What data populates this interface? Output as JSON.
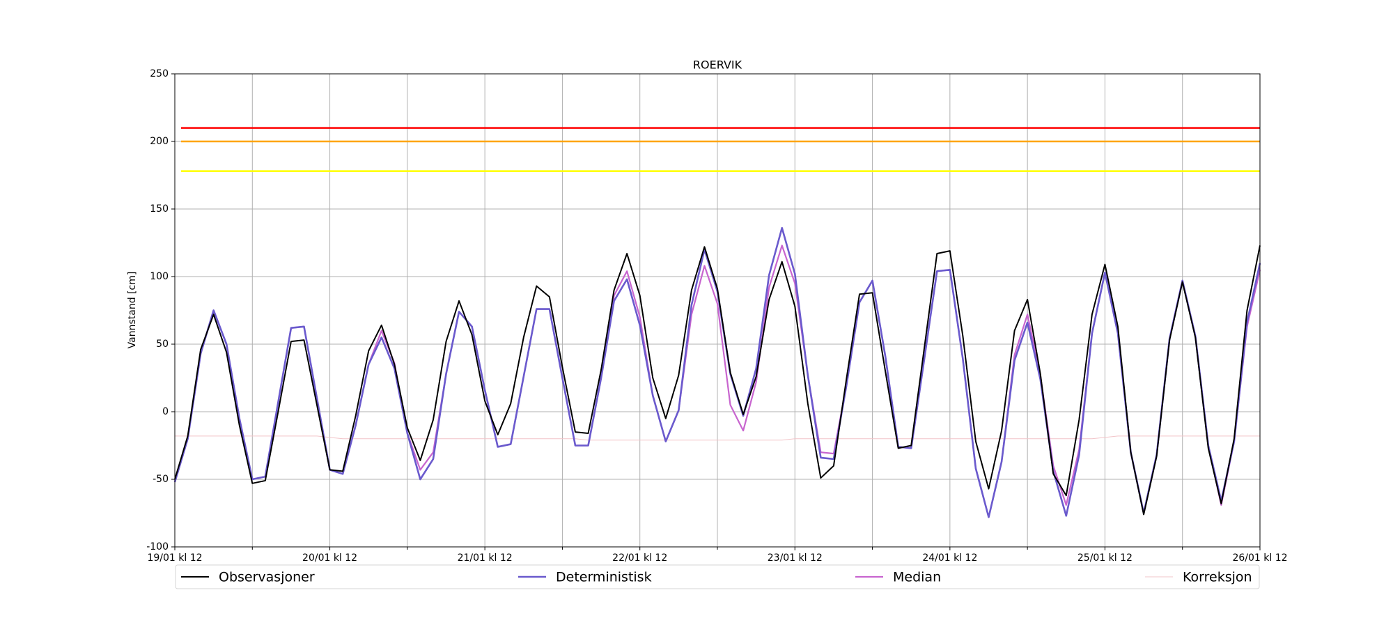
{
  "chart_data": {
    "type": "line",
    "title": "ROERVIK",
    "y_label": "Vannstand [cm]",
    "x": [
      0,
      2,
      4,
      6,
      8,
      10,
      12,
      14,
      16,
      18,
      20,
      22,
      24,
      26,
      28,
      30,
      32,
      34,
      36,
      38,
      40,
      42,
      44,
      46,
      48,
      50,
      52,
      54,
      56,
      58,
      60,
      62,
      64,
      66,
      68,
      70,
      72,
      74,
      76,
      78,
      80,
      82,
      84,
      86,
      88,
      90,
      92,
      94,
      96,
      98,
      100,
      102,
      104,
      106,
      108,
      110,
      112,
      114,
      116,
      118,
      120,
      122,
      124,
      126,
      128,
      130,
      132,
      134,
      136,
      138,
      140,
      142,
      144,
      146,
      148,
      150,
      152,
      154,
      156,
      158,
      160,
      162,
      164,
      166,
      168
    ],
    "xlim": [
      0,
      168
    ],
    "xticks": [
      {
        "value": 0,
        "label": "19/01 kl 12"
      },
      {
        "value": 24,
        "label": "20/01 kl 12"
      },
      {
        "value": 48,
        "label": "21/01 kl 12"
      },
      {
        "value": 72,
        "label": "22/01 kl 12"
      },
      {
        "value": 96,
        "label": "23/01 kl 12"
      },
      {
        "value": 120,
        "label": "24/01 kl 12"
      },
      {
        "value": 144,
        "label": "25/01 kl 12"
      },
      {
        "value": 168,
        "label": "26/01 kl 12"
      }
    ],
    "xticks_minor": [
      12,
      36,
      60,
      84,
      108,
      132,
      156
    ],
    "ylim": [
      -100,
      250
    ],
    "yticks": [
      -100,
      -50,
      0,
      50,
      100,
      150,
      200,
      250
    ],
    "grid": true,
    "legend": "bottom",
    "thresholds": [
      {
        "value": 210,
        "color": "#ff0000"
      },
      {
        "value": 200,
        "color": "#ffa500"
      },
      {
        "value": 178,
        "color": "#ffff00"
      }
    ],
    "series": [
      {
        "name": "Observasjoner",
        "color": "#000000",
        "values": [
          -50,
          -18,
          46,
          72,
          44,
          -10,
          -53,
          -51,
          0,
          52,
          53,
          5,
          -43,
          -44,
          -3,
          45,
          64,
          35,
          -12,
          -36,
          -6,
          52,
          82,
          57,
          8,
          -17,
          6,
          55,
          93,
          85,
          33,
          -15,
          -16,
          31,
          90,
          117,
          86,
          25,
          -5,
          27,
          90,
          122,
          91,
          29,
          -2,
          26,
          83,
          111,
          78,
          6,
          -49,
          -40,
          25,
          87,
          88,
          30,
          -27,
          -25,
          46,
          117,
          119,
          56,
          -22,
          -57,
          -14,
          60,
          83,
          28,
          -46,
          -62,
          -6,
          72,
          109,
          63,
          -30,
          -76,
          -33,
          53,
          96,
          55,
          -27,
          -68,
          -20,
          75,
          123
        ]
      },
      {
        "name": "Deterministisk",
        "color": "#6a5acd",
        "values": [
          -52,
          -20,
          43,
          75,
          50,
          -5,
          -50,
          -48,
          7,
          62,
          63,
          10,
          -43,
          -46,
          -10,
          35,
          55,
          32,
          -16,
          -50,
          -35,
          28,
          74,
          63,
          16,
          -26,
          -24,
          26,
          76,
          76,
          25,
          -25,
          -25,
          25,
          82,
          98,
          64,
          12,
          -22,
          1,
          79,
          120,
          89,
          28,
          -3,
          32,
          101,
          136,
          102,
          27,
          -34,
          -35,
          20,
          81,
          97,
          41,
          -26,
          -27,
          38,
          104,
          105,
          39,
          -42,
          -78,
          -37,
          38,
          66,
          24,
          -44,
          -77,
          -32,
          58,
          103,
          58,
          -30,
          -75,
          -32,
          54,
          97,
          56,
          -25,
          -66,
          -22,
          66,
          110
        ]
      },
      {
        "name": "Median",
        "color": "#c865cf",
        "values": [
          -52,
          -20,
          43,
          75,
          50,
          -5,
          -50,
          -48,
          7,
          62,
          63,
          10,
          -43,
          -46,
          -10,
          35,
          60,
          36,
          -16,
          -43,
          -30,
          28,
          74,
          63,
          16,
          -26,
          -24,
          26,
          76,
          76,
          25,
          -25,
          -25,
          25,
          86,
          104,
          70,
          12,
          -22,
          1,
          72,
          108,
          80,
          5,
          -14,
          22,
          92,
          123,
          95,
          27,
          -30,
          -31,
          20,
          81,
          97,
          41,
          -26,
          -27,
          38,
          104,
          105,
          39,
          -42,
          -78,
          -37,
          42,
          72,
          27,
          -40,
          -69,
          -28,
          58,
          103,
          58,
          -30,
          -75,
          -32,
          54,
          97,
          56,
          -25,
          -69,
          -22,
          63,
          105
        ]
      },
      {
        "name": "Korreksjon",
        "color": "#f2c4c8",
        "values": [
          -18,
          -18,
          -18,
          -18,
          -18,
          -18,
          -18,
          -18,
          -18,
          -18,
          -18,
          -18,
          -19,
          -20,
          -20,
          -20,
          -20,
          -20,
          -20,
          -20,
          -20,
          -20,
          -20,
          -20,
          -20,
          -20,
          -20,
          -20,
          -20,
          -20,
          -20,
          -20,
          -21,
          -21,
          -21,
          -21,
          -21,
          -21,
          -21,
          -21,
          -21,
          -21,
          -21,
          -21,
          -21,
          -21,
          -21,
          -21,
          -20,
          -20,
          -20,
          -20,
          -20,
          -20,
          -20,
          -20,
          -20,
          -20,
          -20,
          -20,
          -20,
          -20,
          -20,
          -20,
          -20,
          -20,
          -20,
          -20,
          -20,
          -20,
          -20,
          -20,
          -19,
          -18,
          -18,
          -18,
          -18,
          -18,
          -18,
          -18,
          -18,
          -18,
          -18,
          -18,
          -18
        ]
      }
    ]
  }
}
